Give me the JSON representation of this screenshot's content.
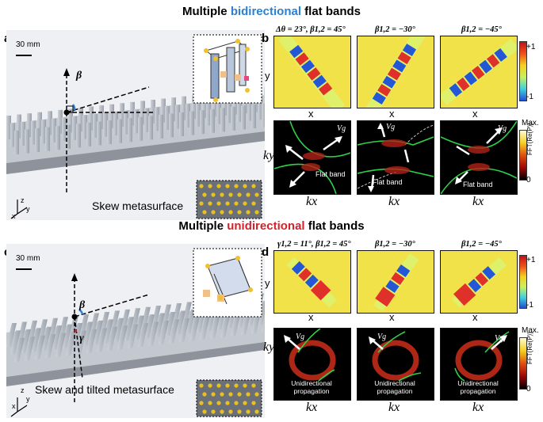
{
  "top": {
    "heading_pre": "Multiple ",
    "heading_hl": "bidirectional",
    "heading_post": " flat bands",
    "panel_a": "a",
    "panel_b": "b",
    "scale_bar": "30 mm",
    "angle_label": "β",
    "caption": "Skew metasurface",
    "axes": {
      "z": "z",
      "y": "y",
      "x": "x"
    },
    "titles": [
      "Δθ = 23°, β1,2 = 45°",
      "β1,2 = −30°",
      "β1,2 = −45°"
    ],
    "y_label": "y",
    "x_label": "x",
    "colorbar_top": "+1",
    "colorbar_bottom": "-1",
    "ky": "ky",
    "kx": "kx",
    "vg": "Vg",
    "flat_band": "Flat band",
    "fft_max": "Max.",
    "fft_min": "0",
    "fft_label": "FFT(Re(P))"
  },
  "bottom": {
    "heading_pre": "Multiple ",
    "heading_hl": "unidirectional",
    "heading_post": " flat bands",
    "panel_c": "c",
    "panel_d": "d",
    "scale_bar": "30 mm",
    "angle_beta": "β",
    "angle_gamma": "γ",
    "caption": "Skew and tilted metasurface",
    "axes": {
      "z": "z",
      "y": "y",
      "x": "x"
    },
    "titles": [
      "γ1,2 = 11°, β1,2 = 45°",
      "β1,2 = −30°",
      "β1,2 = −45°"
    ],
    "y_label": "y",
    "x_label": "x",
    "colorbar_top": "+1",
    "colorbar_bottom": "-1",
    "ky": "ky",
    "kx": "kx",
    "vg": "Vg",
    "propagation": "Unidirectional propagation",
    "fft_max": "Max.",
    "fft_min": "0",
    "fft_label": "FFT(Re(P))"
  },
  "colors": {
    "highlight_blue": "#2e7fd1",
    "highlight_red": "#d0242a",
    "band_green": "#2fd14a"
  }
}
